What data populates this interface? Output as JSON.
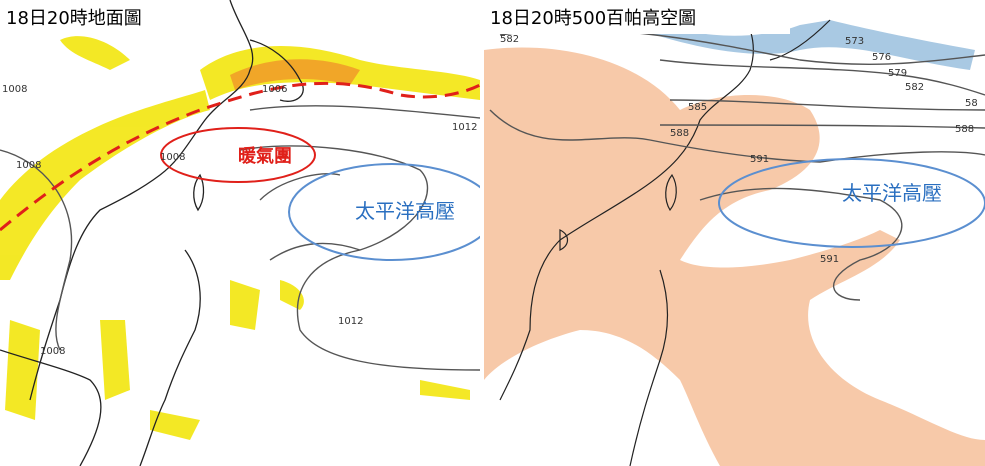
{
  "panels": [
    {
      "title": "18日20時地面圖",
      "annotations": [
        "暖氣團",
        "太平洋高壓"
      ],
      "contour_labels": [
        "1008",
        "1006",
        "1008",
        "1008",
        "1012",
        "1012",
        "1008"
      ]
    },
    {
      "title": "18日20時500百帕高空圖",
      "annotations": [
        "太平洋高壓"
      ],
      "contour_labels": [
        "582",
        "573",
        "576",
        "579",
        "582",
        "58",
        "588",
        "585",
        "588",
        "591",
        "591"
      ]
    }
  ]
}
